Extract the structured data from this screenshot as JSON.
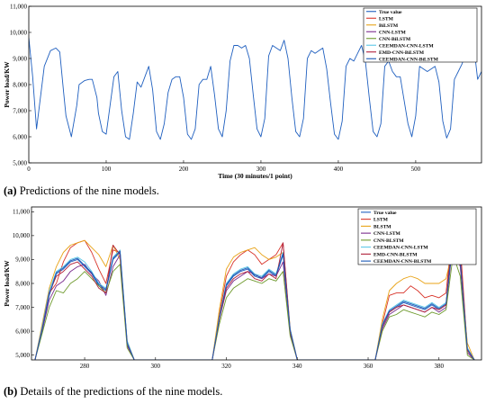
{
  "captions": {
    "a_label": "(a)",
    "a_text": " Predictions of the nine models.",
    "b_label": "(b)",
    "b_text": " Details of the predictions of the nine models."
  },
  "colors": {
    "True value": "#1f5fbf",
    "LSTM": "#d8342a",
    "BLSTM": "#e8a317",
    "BiLSTM": "#e8a317",
    "CNN-LSTM": "#7b2d8e",
    "CNN-BiLSTM": "#6e9a2d",
    "CNN-BLSTM": "#6e9a2d",
    "CEEMDAN-CNN-LSTM": "#5bc8e8",
    "EMD-CNN-BLSTM": "#b0203a",
    "EMD-CNN-BiLSTM": "#b0203a",
    "CEEMDAN-CNN-BLSTM": "#1a57b5",
    "CEEMDAN-CNN-BiLSTM": "#1a57b5"
  },
  "chart_data": [
    {
      "type": "line",
      "ylabel": "Power load/KW",
      "xlabel": "Time (30 minutes/1 point)",
      "xlim": [
        0,
        585
      ],
      "ylim": [
        5000,
        11000
      ],
      "xticks": [
        0,
        100,
        200,
        300,
        400,
        500
      ],
      "yticks": [
        5000,
        6000,
        7000,
        8000,
        9000,
        10000,
        11000
      ],
      "ytick_labels": [
        "5,000",
        "6,000",
        "7,000",
        "8,000",
        "9,000",
        "10,000",
        "11,000"
      ],
      "legend": [
        "True value",
        "LSTM",
        "BiLSTM",
        "CNN-LSTM",
        "CNN-BiLSTM",
        "CEEMDAN-CNN-LSTM",
        "EMD-CNN-BiLSTM",
        "CEEMDAN-CNN-BiLSTM"
      ],
      "legend_position": "top-right",
      "series": [
        {
          "name": "True value",
          "x": [
            0,
            5,
            10,
            20,
            28,
            35,
            40,
            45,
            48,
            55,
            62,
            65,
            72,
            78,
            82,
            88,
            90,
            95,
            100,
            105,
            110,
            115,
            120,
            125,
            130,
            135,
            140,
            145,
            150,
            155,
            160,
            165,
            170,
            175,
            180,
            185,
            190,
            195,
            200,
            205,
            210,
            215,
            220,
            225,
            230,
            235,
            240,
            245,
            250,
            255,
            260,
            265,
            270,
            275,
            280,
            285,
            290,
            295,
            300,
            305,
            310,
            315,
            320,
            325,
            330,
            335,
            340,
            345,
            350,
            355,
            360,
            365,
            370,
            375,
            380,
            385,
            390,
            395,
            400,
            405,
            410,
            415,
            420,
            425,
            430,
            435,
            440,
            445,
            450,
            455,
            460,
            465,
            470,
            475,
            480,
            485,
            490,
            495,
            500,
            505,
            510,
            515,
            520,
            525,
            530,
            535,
            540,
            545,
            550,
            555,
            560,
            565,
            570,
            575,
            580,
            585
          ],
          "y": [
            9800,
            8300,
            6300,
            8700,
            9300,
            9400,
            9250,
            7700,
            6800,
            6000,
            7200,
            8000,
            8150,
            8200,
            8200,
            7500,
            6900,
            6200,
            6100,
            7200,
            8300,
            8500,
            7000,
            6000,
            5900,
            6900,
            8100,
            7900,
            8300,
            8700,
            7800,
            6200,
            5900,
            6500,
            7700,
            8200,
            8300,
            8300,
            7500,
            6100,
            5900,
            6300,
            8000,
            8200,
            8200,
            8700,
            7600,
            6300,
            6000,
            7000,
            8900,
            9500,
            9500,
            9400,
            9500,
            9000,
            7600,
            6300,
            6000,
            6700,
            9100,
            9500,
            9400,
            9300,
            9700,
            9000,
            7500,
            6200,
            6000,
            6700,
            9000,
            9300,
            9200,
            9300,
            9400,
            8600,
            7300,
            6100,
            5900,
            6600,
            8700,
            9000,
            8900,
            9200,
            9500,
            8900,
            7500,
            6200,
            6000,
            6500,
            8700,
            8900,
            8500,
            8300,
            8300,
            7400,
            6500,
            6000,
            6800,
            8700,
            8600,
            8500,
            8600,
            8700,
            8100,
            6600,
            5950,
            6300,
            8200,
            8500,
            8800,
            9300,
            9800,
            9500,
            8200,
            8500
          ]
        }
      ]
    },
    {
      "type": "line",
      "ylabel": "Power load/KW",
      "xlim": [
        265,
        392
      ],
      "ylim": [
        4800,
        11200
      ],
      "xticks": [
        280,
        300,
        320,
        340,
        360,
        380
      ],
      "yticks": [
        5000,
        6000,
        7000,
        8000,
        9000,
        10000,
        11000
      ],
      "ytick_labels": [
        "5,000",
        "6,000",
        "7,000",
        "8,000",
        "9,000",
        "10,000",
        "11,000"
      ],
      "legend": [
        "True value",
        "LSTM",
        "BLSTM",
        "CNN-LSTM",
        "CNN-BLSTM",
        "CEEMDAN-CNN-LSTM",
        "EMD-CNN-BLSTM",
        "CEEMDAN-CNN-BLSTM"
      ],
      "legend_position": "top-right",
      "series": [
        {
          "name": "True value",
          "x": [
            266,
            268,
            270,
            272,
            274,
            276,
            278,
            280,
            282,
            284,
            286,
            288,
            290,
            292,
            294,
            296,
            316,
            318,
            320,
            322,
            324,
            326,
            328,
            330,
            332,
            334,
            336,
            338,
            340,
            342,
            362,
            364,
            366,
            368,
            370,
            372,
            374,
            376,
            378,
            380,
            382,
            384,
            386,
            388,
            390
          ],
          "y": [
            4800,
            6000,
            7500,
            8400,
            8600,
            8900,
            9000,
            8700,
            8400,
            7900,
            7700,
            9000,
            9300,
            5500,
            4800,
            4800,
            4800,
            6500,
            7900,
            8300,
            8500,
            8600,
            8300,
            8200,
            8500,
            8300,
            9200,
            6000,
            4800,
            4800,
            4800,
            6200,
            6800,
            7000,
            7200,
            7100,
            7000,
            6900,
            7100,
            6900,
            7100,
            9900,
            8900,
            5200,
            4800
          ]
        },
        {
          "name": "LSTM",
          "x": [
            266,
            268,
            270,
            272,
            274,
            276,
            278,
            280,
            282,
            284,
            286,
            288,
            290,
            292,
            294,
            296,
            316,
            318,
            320,
            322,
            324,
            326,
            328,
            330,
            332,
            334,
            336,
            338,
            340,
            342,
            362,
            364,
            366,
            368,
            370,
            372,
            374,
            376,
            378,
            380,
            382,
            384,
            386,
            388,
            390
          ],
          "y": [
            4800,
            6100,
            7600,
            8000,
            8900,
            9500,
            9700,
            9800,
            9300,
            8600,
            8000,
            9400,
            9300,
            5400,
            4800,
            4800,
            4800,
            6700,
            8300,
            8900,
            9200,
            9400,
            9200,
            8800,
            9000,
            9200,
            9700,
            6100,
            4800,
            4800,
            4800,
            6300,
            7500,
            7600,
            7600,
            7900,
            7700,
            7400,
            7500,
            7400,
            7600,
            10500,
            9600,
            5300,
            4800
          ]
        },
        {
          "name": "BLSTM",
          "x": [
            266,
            268,
            270,
            272,
            274,
            276,
            278,
            280,
            282,
            284,
            286,
            288,
            290,
            292,
            294,
            296,
            316,
            318,
            320,
            322,
            324,
            326,
            328,
            330,
            332,
            334,
            336,
            338,
            340,
            342,
            362,
            364,
            366,
            368,
            370,
            372,
            374,
            376,
            378,
            380,
            382,
            384,
            386,
            388,
            390
          ],
          "y": [
            4800,
            6300,
            7800,
            8700,
            9300,
            9600,
            9700,
            9800,
            9500,
            9200,
            8700,
            9600,
            9000,
            5600,
            4800,
            4800,
            4800,
            6900,
            8600,
            9100,
            9300,
            9400,
            9500,
            9200,
            9000,
            9100,
            9300,
            6100,
            4800,
            4800,
            4800,
            6500,
            7700,
            8000,
            8200,
            8300,
            8200,
            8000,
            8000,
            8000,
            8200,
            9500,
            8700,
            5500,
            4800
          ]
        },
        {
          "name": "CNN-LSTM",
          "x": [
            266,
            268,
            270,
            272,
            274,
            276,
            278,
            280,
            282,
            284,
            286,
            288,
            290,
            292,
            294,
            296,
            316,
            318,
            320,
            322,
            324,
            326,
            328,
            330,
            332,
            334,
            336,
            338,
            340,
            342,
            362,
            364,
            366,
            368,
            370,
            372,
            374,
            376,
            378,
            380,
            382,
            384,
            386,
            388,
            390
          ],
          "y": [
            4800,
            6000,
            7300,
            7900,
            8100,
            8500,
            8700,
            8800,
            8400,
            8100,
            7500,
            8700,
            9200,
            5400,
            4800,
            4800,
            4800,
            6500,
            7700,
            8100,
            8300,
            8500,
            8400,
            8200,
            8400,
            8300,
            8900,
            5900,
            4800,
            4800,
            4800,
            6100,
            6700,
            6900,
            7100,
            7000,
            6900,
            6800,
            7000,
            6800,
            7000,
            9800,
            8700,
            5100,
            4800
          ]
        },
        {
          "name": "CNN-BLSTM",
          "x": [
            266,
            268,
            270,
            272,
            274,
            276,
            278,
            280,
            282,
            284,
            286,
            288,
            290,
            292,
            294,
            296,
            316,
            318,
            320,
            322,
            324,
            326,
            328,
            330,
            332,
            334,
            336,
            338,
            340,
            342,
            362,
            364,
            366,
            368,
            370,
            372,
            374,
            376,
            378,
            380,
            382,
            384,
            386,
            388,
            390
          ],
          "y": [
            4800,
            5900,
            7000,
            7700,
            7600,
            8000,
            8200,
            8500,
            8200,
            7900,
            7600,
            8500,
            8800,
            5300,
            4800,
            4800,
            4800,
            6300,
            7400,
            7800,
            8000,
            8200,
            8100,
            8000,
            8200,
            8100,
            8500,
            5800,
            4800,
            4800,
            4800,
            6000,
            6600,
            6700,
            6900,
            6800,
            6700,
            6600,
            6800,
            6700,
            6900,
            9200,
            8300,
            5000,
            4800
          ]
        },
        {
          "name": "CEEMDAN-CNN-LSTM",
          "x": [
            266,
            268,
            270,
            272,
            274,
            276,
            278,
            280,
            282,
            284,
            286,
            288,
            290,
            292,
            294,
            296,
            316,
            318,
            320,
            322,
            324,
            326,
            328,
            330,
            332,
            334,
            336,
            338,
            340,
            342,
            362,
            364,
            366,
            368,
            370,
            372,
            374,
            376,
            378,
            380,
            382,
            384,
            386,
            388,
            390
          ],
          "y": [
            4800,
            6200,
            7700,
            8500,
            8700,
            9000,
            9100,
            8900,
            8500,
            8000,
            7800,
            9100,
            9400,
            5600,
            4800,
            4800,
            4800,
            6600,
            8000,
            8400,
            8600,
            8700,
            8400,
            8300,
            8600,
            8400,
            9300,
            6100,
            4800,
            4800,
            4800,
            6300,
            6900,
            7100,
            7300,
            7200,
            7100,
            7000,
            7200,
            7000,
            7200,
            10000,
            9000,
            5300,
            4800
          ]
        },
        {
          "name": "EMD-CNN-BLSTM",
          "x": [
            266,
            268,
            270,
            272,
            274,
            276,
            278,
            280,
            282,
            284,
            286,
            288,
            290,
            292,
            294,
            296,
            316,
            318,
            320,
            322,
            324,
            326,
            328,
            330,
            332,
            334,
            336,
            338,
            340,
            342,
            362,
            364,
            366,
            368,
            370,
            372,
            374,
            376,
            378,
            380,
            382,
            384,
            386,
            388,
            390
          ],
          "y": [
            4800,
            6100,
            7600,
            8300,
            8500,
            8800,
            8900,
            8600,
            8300,
            7800,
            7600,
            9600,
            9200,
            5500,
            4800,
            4800,
            4800,
            6500,
            7800,
            8200,
            8400,
            8500,
            8200,
            8100,
            8400,
            8200,
            9700,
            6000,
            4800,
            4800,
            4800,
            6200,
            6800,
            7000,
            7100,
            7000,
            6900,
            6800,
            7000,
            6900,
            7100,
            10600,
            9100,
            5200,
            4800
          ]
        },
        {
          "name": "CEEMDAN-CNN-BLSTM",
          "x": [
            266,
            268,
            270,
            272,
            274,
            276,
            278,
            280,
            282,
            284,
            286,
            288,
            290,
            292,
            294,
            296,
            316,
            318,
            320,
            322,
            324,
            326,
            328,
            330,
            332,
            334,
            336,
            338,
            340,
            342,
            362,
            364,
            366,
            368,
            370,
            372,
            374,
            376,
            378,
            380,
            382,
            384,
            386,
            388,
            390
          ],
          "y": [
            4800,
            6050,
            7550,
            8450,
            8650,
            8950,
            9050,
            8750,
            8450,
            7950,
            7750,
            9050,
            9350,
            5500,
            4800,
            4800,
            4800,
            6550,
            7950,
            8350,
            8550,
            8650,
            8350,
            8250,
            8550,
            8350,
            9250,
            6050,
            4800,
            4800,
            4800,
            6250,
            6850,
            7050,
            7250,
            7150,
            7050,
            6950,
            7150,
            6950,
            7150,
            9950,
            8950,
            5250,
            4800
          ]
        }
      ]
    }
  ]
}
